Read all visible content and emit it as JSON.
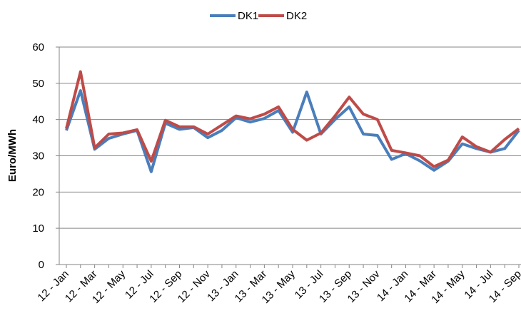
{
  "chart_data": {
    "type": "line",
    "y_label": "Euro/MWh",
    "categories": [
      "12 - Jan",
      null,
      "12 - Mar",
      null,
      "12 - May",
      null,
      "12 - Jul",
      null,
      "12 - Sep",
      null,
      "12 - Nov",
      null,
      "13 - Jan",
      null,
      "13 - Mar",
      null,
      "13 - May",
      null,
      "13 - Jul",
      null,
      "13 - Sep",
      null,
      "13 - Nov",
      null,
      "14 - Jan",
      null,
      "14 - Mar",
      null,
      "14 - May",
      null,
      "14 - Jul",
      null,
      "14 - Sep"
    ],
    "series": [
      {
        "name": "DK1",
        "color": "#4a7ebb",
        "values": [
          37,
          48,
          31.8,
          34.8,
          36,
          37,
          25.6,
          39,
          37.3,
          37.8,
          35,
          37,
          40.5,
          39.3,
          40.3,
          42.5,
          36.5,
          47.6,
          36,
          40,
          43.5,
          36,
          35.6,
          29,
          30.6,
          28.6,
          26,
          28.5,
          33.3,
          32,
          31,
          32,
          37
        ]
      },
      {
        "name": "DK2",
        "color": "#be4b48",
        "values": [
          37.5,
          53.2,
          32.2,
          36,
          36.3,
          37.2,
          28.5,
          39.8,
          38,
          38,
          36,
          38.5,
          41,
          40.2,
          41.5,
          43.5,
          37.3,
          34.3,
          36.3,
          41,
          46.2,
          41.5,
          40,
          31.5,
          30.8,
          30,
          27,
          28.8,
          35.2,
          32.5,
          31,
          34.5,
          37.5
        ]
      }
    ],
    "ylim": [
      0,
      60
    ],
    "yticks": [
      0,
      10,
      20,
      30,
      40,
      50,
      60
    ],
    "grid": true,
    "legend": "top"
  }
}
